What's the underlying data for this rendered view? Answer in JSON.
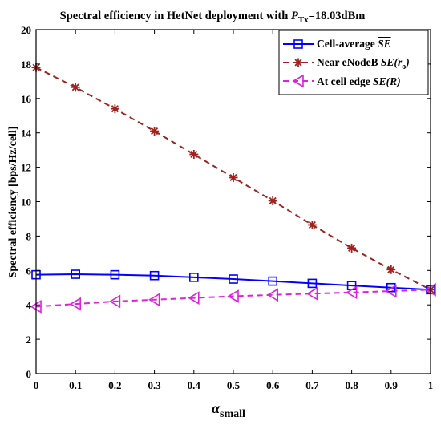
{
  "chart_data": {
    "type": "line",
    "title": {
      "prefix": "Spectral efficiency in HetNet deployment with ",
      "symbol": "P",
      "symbol_sub": "Tx",
      "suffix": "=18.03dBm"
    },
    "xlabel": {
      "symbol": "α",
      "sub": "small"
    },
    "ylabel": "Spectral efficiency [bps/Hz/cell]",
    "xlim": [
      0,
      1
    ],
    "ylim": [
      0,
      20
    ],
    "x_ticks": [
      "0",
      "0.1",
      "0.2",
      "0.3",
      "0.4",
      "0.5",
      "0.6",
      "0.7",
      "0.8",
      "0.9",
      "1"
    ],
    "y_ticks": [
      "0",
      "2",
      "4",
      "6",
      "8",
      "10",
      "12",
      "14",
      "16",
      "18",
      "20"
    ],
    "grid": false,
    "legend_position": "top-right",
    "x": [
      0,
      0.1,
      0.2,
      0.3,
      0.4,
      0.5,
      0.6,
      0.7,
      0.8,
      0.9,
      1.0
    ],
    "series": [
      {
        "name": "Cell-average SE",
        "legend_text": "Cell-average ",
        "legend_math": "SE",
        "legend_overline": true,
        "color": "#0000ff",
        "line_style": "solid",
        "marker": "square",
        "values": [
          5.75,
          5.78,
          5.75,
          5.7,
          5.6,
          5.5,
          5.38,
          5.25,
          5.12,
          5.0,
          4.88
        ]
      },
      {
        "name": "Near eNodeB SE(r0)",
        "legend_text": "Near eNodeB ",
        "legend_math": "SE(r",
        "legend_sub": "o",
        "legend_close": ")",
        "color": "#a0221f",
        "line_style": "dashed",
        "marker": "asterisk",
        "values": [
          17.8,
          16.65,
          15.4,
          14.1,
          12.75,
          11.4,
          10.05,
          8.65,
          7.3,
          6.05,
          4.88
        ]
      },
      {
        "name": "At cell edge SE(R)",
        "legend_text": "At cell edge ",
        "legend_math": "SE(R)",
        "color": "#e020e0",
        "line_style": "dashed",
        "marker": "triangle-left",
        "values": [
          3.9,
          4.05,
          4.2,
          4.3,
          4.4,
          4.5,
          4.58,
          4.65,
          4.72,
          4.8,
          4.88
        ]
      }
    ]
  }
}
